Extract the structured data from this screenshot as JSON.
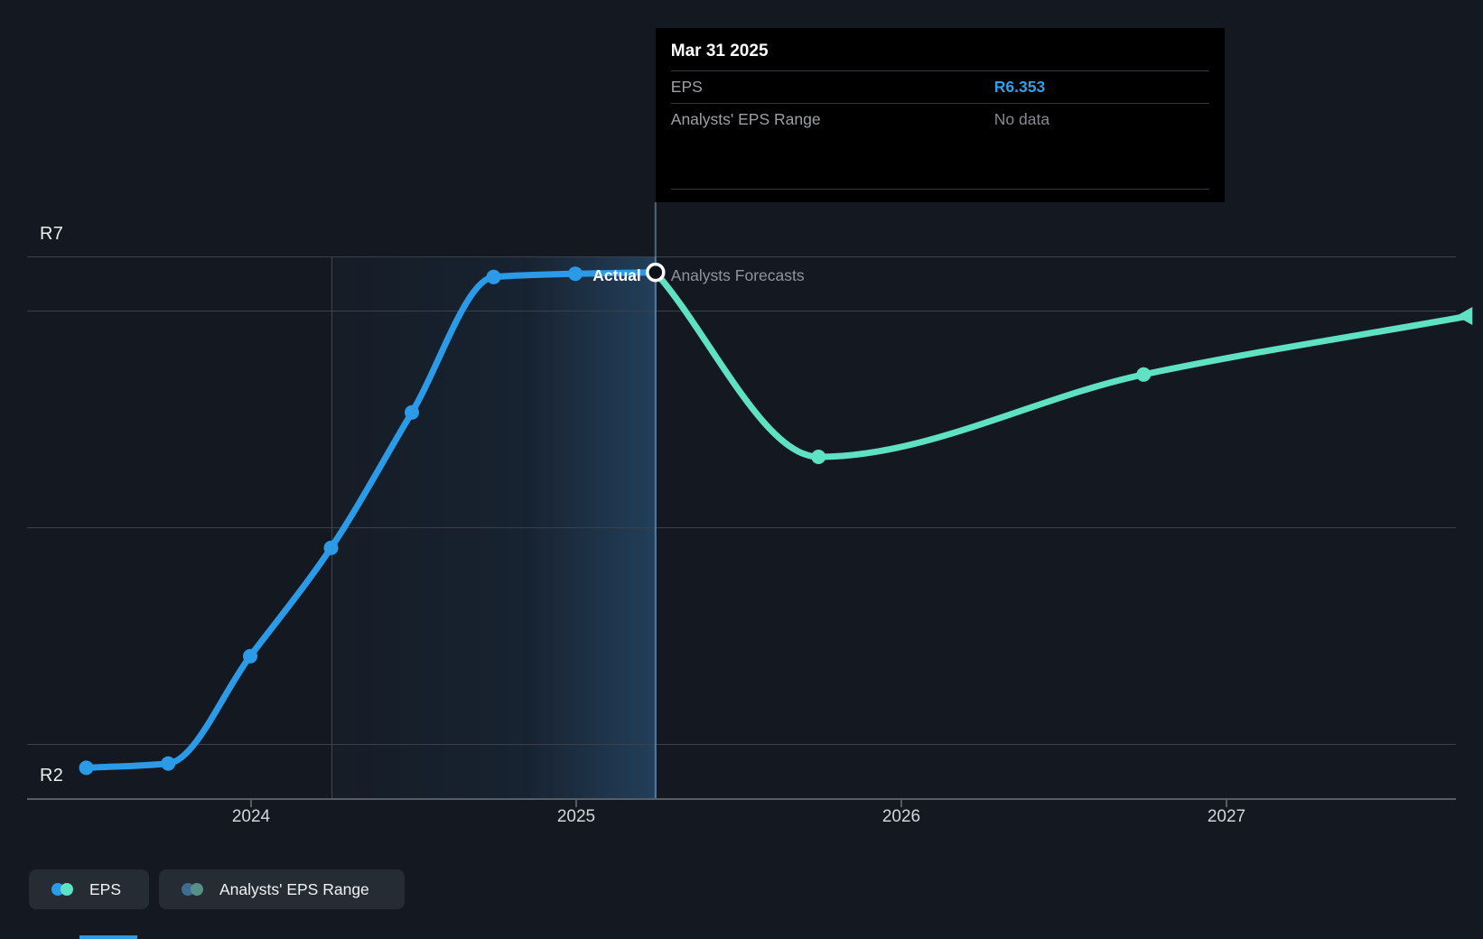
{
  "y_axis": {
    "top_label": "R7",
    "bottom_label": "R2"
  },
  "x_axis": {
    "ticks": [
      "2024",
      "2025",
      "2026",
      "2027"
    ]
  },
  "annotations": {
    "actual": "Actual",
    "forecast": "Analysts Forecasts"
  },
  "tooltip": {
    "title": "Mar 31 2025",
    "rows": [
      {
        "label": "EPS",
        "value": "R6.353"
      },
      {
        "label": "Analysts' EPS Range",
        "value": "No data"
      }
    ]
  },
  "legend": {
    "items": [
      {
        "label": "EPS",
        "dot_colors": [
          "#2b9be8",
          "#5fe2c4"
        ]
      },
      {
        "label": "Analysts' EPS Range",
        "dot_colors": [
          "#3f6d92",
          "#579086"
        ]
      }
    ]
  },
  "colors": {
    "background": "#141921",
    "actual_line": "#2b9be8",
    "forecast_line": "#5fe2c4",
    "tooltip_value_blue": "#2f9fe8",
    "gridline": "#3a414a",
    "highlight_dot_ring": "#ffffff"
  },
  "chart_data": {
    "type": "line",
    "title": "EPS — actual vs analysts forecasts",
    "ylabel": "EPS (R)",
    "xlabel": "",
    "ylim": [
      1.5,
      6.5
    ],
    "grid": "horizontal",
    "grid_values": [
      6.5,
      6.0,
      4.0,
      2.0,
      1.5
    ],
    "y_tick_labels_shown": [
      "R7",
      "R2"
    ],
    "x_ticks": [
      "2024",
      "2025",
      "2026",
      "2027"
    ],
    "legend_position": "bottom-left",
    "highlight_band": {
      "from": "2024-03-31",
      "to": "2025-03-31"
    },
    "highlighted_point": {
      "date": "2025-03-31",
      "value": 6.353,
      "series": "EPS (actual)"
    },
    "series": [
      {
        "name": "EPS (actual)",
        "color": "#2b9be8",
        "x": [
          "2023-06-30",
          "2023-09-30",
          "2023-12-31",
          "2024-03-31",
          "2024-06-30",
          "2024-09-30",
          "2024-12-31",
          "2025-03-31"
        ],
        "values": [
          1.78,
          1.82,
          2.81,
          3.81,
          5.06,
          6.31,
          6.34,
          6.353
        ]
      },
      {
        "name": "EPS (analysts forecast)",
        "color": "#5fe2c4",
        "x": [
          "2025-03-31",
          "2025-09-30",
          "2026-09-30",
          "2027-09-30"
        ],
        "values": [
          6.353,
          4.65,
          5.41,
          5.95
        ]
      }
    ]
  }
}
